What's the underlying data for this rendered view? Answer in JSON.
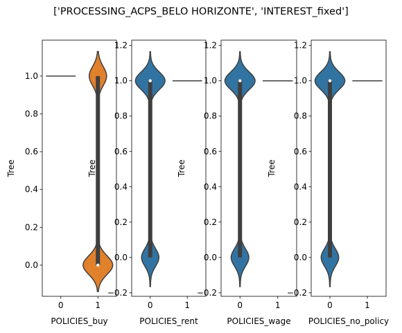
{
  "title": "['PROCESSING_ACPS_BELO HORIZONTE', 'INTEREST_fixed']",
  "colors": {
    "blue": "#3274a1",
    "orange": "#e1812c",
    "dark": "#3f3f3f"
  },
  "chart_data": [
    {
      "type": "violin",
      "xlabel": "POLICIES_buy",
      "ylabel": "Tree",
      "categories": [
        "0",
        "1"
      ],
      "ylim": [
        -0.165,
        1.19
      ],
      "yticks": [
        "0.0",
        "0.2",
        "0.4",
        "0.6",
        "0.8",
        "1.0"
      ],
      "violins": [
        {
          "category": "0",
          "shape": "line",
          "value": 1.0,
          "color": "#3274a1"
        },
        {
          "category": "1",
          "shape": "bimodal",
          "low": -0.14,
          "high": 1.13,
          "median": 0.0,
          "dense": 0.0,
          "sparse": 1.0,
          "color": "#e1812c"
        }
      ]
    },
    {
      "type": "violin",
      "xlabel": "POLICIES_rent",
      "ylabel": "Tree",
      "categories": [
        "0",
        "1"
      ],
      "ylim": [
        -0.22,
        1.23
      ],
      "yticks": [
        "−0.2",
        "0.0",
        "0.2",
        "0.4",
        "0.6",
        "0.8",
        "1.0",
        "1.2"
      ],
      "violins": [
        {
          "category": "0",
          "shape": "bimodal",
          "low": -0.165,
          "high": 1.165,
          "median": 1.0,
          "dense": 1.0,
          "sparse": 0.0,
          "color": "#3274a1"
        },
        {
          "category": "1",
          "shape": "line",
          "value": 1.0,
          "color": "#e1812c"
        }
      ]
    },
    {
      "type": "violin",
      "xlabel": "POLICIES_wage",
      "ylabel": "Tree",
      "categories": [
        "0",
        "1"
      ],
      "ylim": [
        -0.22,
        1.23
      ],
      "yticks": [
        "−0.2",
        "0.0",
        "0.2",
        "0.4",
        "0.6",
        "0.8",
        "1.0",
        "1.2"
      ],
      "violins": [
        {
          "category": "0",
          "shape": "bimodal",
          "low": -0.165,
          "high": 1.165,
          "median": 1.0,
          "dense": 1.0,
          "sparse": 0.0,
          "color": "#3274a1"
        },
        {
          "category": "1",
          "shape": "line",
          "value": 1.0,
          "color": "#e1812c"
        }
      ]
    },
    {
      "type": "violin",
      "xlabel": "POLICIES_no_policy",
      "ylabel": "Tree",
      "categories": [
        "0",
        "1"
      ],
      "ylim": [
        -0.22,
        1.23
      ],
      "yticks": [
        "−0.2",
        "0.0",
        "0.2",
        "0.4",
        "0.6",
        "0.8",
        "1.0",
        "1.2"
      ],
      "violins": [
        {
          "category": "0",
          "shape": "bimodal",
          "low": -0.165,
          "high": 1.165,
          "median": 1.0,
          "dense": 1.0,
          "sparse": 0.0,
          "color": "#3274a1"
        },
        {
          "category": "1",
          "shape": "line",
          "value": 1.0,
          "color": "#e1812c"
        }
      ]
    }
  ]
}
